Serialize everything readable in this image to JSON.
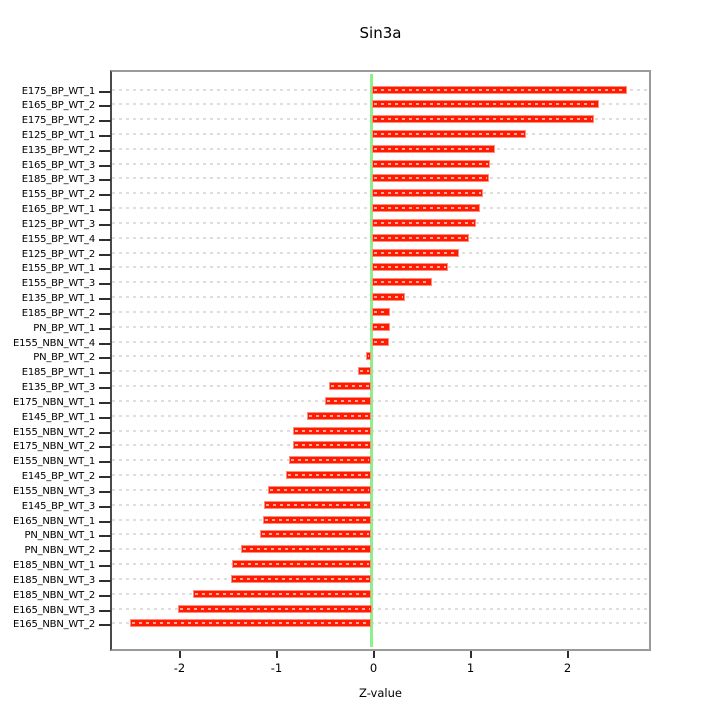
{
  "chart_data": {
    "type": "bar",
    "orientation": "horizontal",
    "title": "Sin3a",
    "xlabel": "Z-value",
    "ylabel": "",
    "x_ticks": [
      -2,
      -1,
      0,
      1,
      2
    ],
    "xlim": [
      -2.7,
      2.85
    ],
    "grid": true,
    "grid_style": "dashed",
    "zero_reference_line": 0,
    "legend": "none",
    "categories": [
      "E175_BP_WT_1",
      "E165_BP_WT_2",
      "E175_BP_WT_2",
      "E125_BP_WT_1",
      "E135_BP_WT_2",
      "E165_BP_WT_3",
      "E185_BP_WT_3",
      "E155_BP_WT_2",
      "E165_BP_WT_1",
      "E125_BP_WT_3",
      "E155_BP_WT_4",
      "E125_BP_WT_2",
      "E155_BP_WT_1",
      "E155_BP_WT_3",
      "E135_BP_WT_1",
      "E185_BP_WT_2",
      "PN_BP_WT_1",
      "E155_NBN_WT_4",
      "PN_BP_WT_2",
      "E185_BP_WT_1",
      "E135_BP_WT_3",
      "E175_NBN_WT_1",
      "E145_BP_WT_1",
      "E155_NBN_WT_2",
      "E175_NBN_WT_2",
      "E155_NBN_WT_1",
      "E145_BP_WT_2",
      "E155_NBN_WT_3",
      "E145_BP_WT_3",
      "E165_NBN_WT_1",
      "PN_NBN_WT_1",
      "PN_NBN_WT_2",
      "E185_NBN_WT_1",
      "E185_NBN_WT_3",
      "E185_NBN_WT_2",
      "E165_NBN_WT_3",
      "E165_NBN_WT_2"
    ],
    "values": [
      2.63,
      2.35,
      2.29,
      1.59,
      1.27,
      1.22,
      1.21,
      1.15,
      1.12,
      1.08,
      1.0,
      0.9,
      0.79,
      0.62,
      0.35,
      0.19,
      0.19,
      0.18,
      -0.06,
      -0.14,
      -0.44,
      -0.48,
      -0.66,
      -0.81,
      -0.81,
      -0.85,
      -0.88,
      -1.07,
      -1.11,
      -1.12,
      -1.15,
      -1.35,
      -1.44,
      -1.45,
      -1.84,
      -2.0,
      -2.49
    ],
    "colors": {
      "bar": "#ff1a00",
      "bar_border": "#ff8d7d",
      "zero_line": "#8df08d",
      "grid": "#dedede",
      "box_border": "#9a9a9a",
      "tick": "#2e2e2e",
      "text": "#000000",
      "background": "#ffffff"
    }
  }
}
